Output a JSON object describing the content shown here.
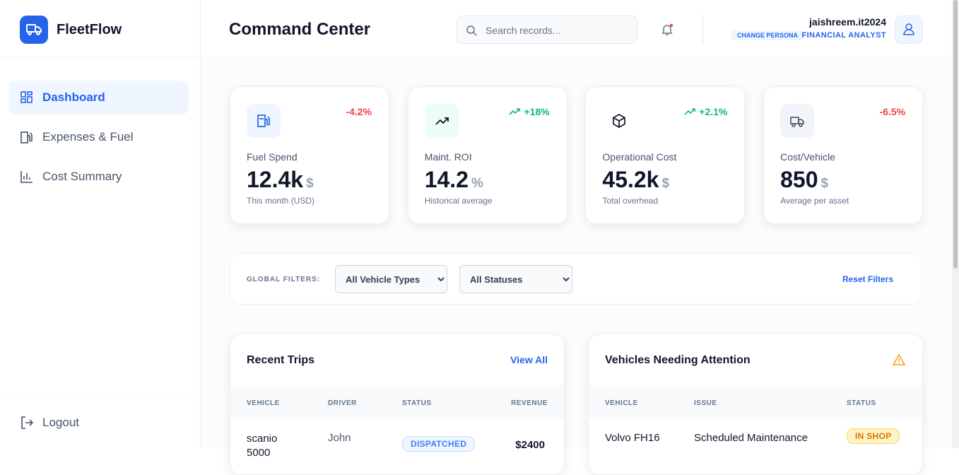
{
  "sidebar": {
    "brand": "FleetFlow",
    "nav": [
      "Dashboard",
      "Expenses & Fuel",
      "Cost Summary"
    ],
    "logout": "Logout"
  },
  "header": {
    "title": "Command Center",
    "search_placeholder": "Search records...",
    "user": "jaishreem.it2024",
    "change_persona": "CHANGE PERSONA",
    "role": "FINANCIAL ANALYST"
  },
  "kpis": [
    {
      "label": "Fuel Spend",
      "value": "12.4k",
      "unit": "$",
      "note": "This month (USD)",
      "change": "-4.2%"
    },
    {
      "label": "Maint. ROI",
      "value": "14.2",
      "unit": "%",
      "note": "Historical average",
      "change": "+18%"
    },
    {
      "label": "Operational Cost",
      "value": "45.2k",
      "unit": "$",
      "note": "Total overhead",
      "change": "+2.1%"
    },
    {
      "label": "Cost/Vehicle",
      "value": "850",
      "unit": "$",
      "note": "Average per asset",
      "change": "-6.5%"
    }
  ],
  "filters": {
    "label": "GLOBAL FILTERS:",
    "vehicle_type": "All Vehicle Types",
    "status": "All Statuses",
    "reset": "Reset Filters"
  },
  "recent_trips": {
    "title": "Recent Trips",
    "link": "View All",
    "columns": [
      "VEHICLE",
      "DRIVER",
      "STATUS",
      "REVENUE"
    ],
    "rows": [
      [
        "scanio 5000",
        "John",
        "DISPATCHED",
        "$2400"
      ]
    ]
  },
  "attention": {
    "title": "Vehicles Needing Attention",
    "columns": [
      "VEHICLE",
      "ISSUE",
      "STATUS"
    ],
    "rows": [
      [
        "Volvo FH16",
        "Scheduled Maintenance",
        "IN SHOP"
      ]
    ]
  }
}
